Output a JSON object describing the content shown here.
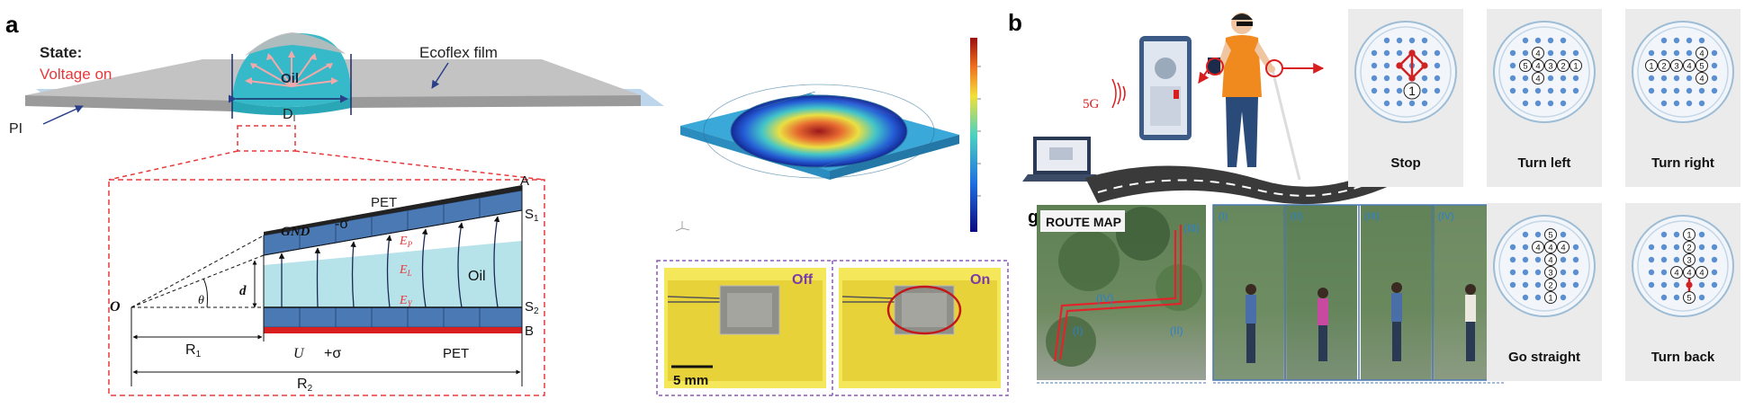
{
  "panel_a": {
    "letter": "a",
    "state_label": "State:",
    "voltage_label": "Voltage on",
    "oil_label": "Oil",
    "ecoflex_label": "Ecoflex film",
    "di_label": "D",
    "di_sub": "I",
    "pi_label": "PI",
    "pet_top": "PET",
    "pet_bottom": "PET",
    "gnd_label": "GND",
    "minus_sigma": "-σ",
    "plus_sigma": "+σ",
    "u_label": "U",
    "a_label": "A",
    "b_label": "B",
    "s1_label": "S",
    "s1_sub": "1",
    "s2_label": "S",
    "s2_sub": "2",
    "ep_label": "E",
    "ep_sub": "P",
    "el_label": "E",
    "el_sub": "L",
    "ey_label": "E",
    "ey_sub": "Y",
    "inner_oil": "Oil",
    "o_label": "O",
    "theta_label": "θ",
    "d_label": "d",
    "r1_label": "R",
    "r1_sub": "1",
    "r2_label": "R",
    "r2_sub": "2"
  },
  "photos": {
    "off_label": "Off",
    "on_label": "On",
    "scale_label": "5 mm"
  },
  "panel_b": {
    "letter": "b",
    "fiveg_label": "5G",
    "route_letter": "g",
    "route_title": "ROUTE MAP",
    "route_markers": [
      "(I)",
      "(II)",
      "(III)",
      "(IV)"
    ],
    "photo_markers": [
      "(I)",
      "(II)",
      "(III)",
      "(IV)"
    ],
    "patterns": [
      {
        "name": "Stop",
        "digits": [
          "1"
        ]
      },
      {
        "name": "Turn left",
        "digits": [
          "4",
          "5",
          "4",
          "3",
          "2",
          "1",
          "4"
        ]
      },
      {
        "name": "Turn right",
        "digits": [
          "4",
          "1",
          "2",
          "3",
          "4",
          "5",
          "4"
        ]
      },
      {
        "name": "Go straight",
        "digits": [
          "5",
          "4",
          "4",
          "4",
          "4",
          "3",
          "2",
          "1"
        ]
      },
      {
        "name": "Turn back",
        "digits": [
          "1",
          "2",
          "3",
          "4",
          "4",
          "4",
          "5"
        ]
      }
    ]
  },
  "colors": {
    "oil": "#36b9c8",
    "red_dashed": "#e8383a",
    "pet_blue": "#4a79b4",
    "electrode_red": "#d81e1e",
    "photo_frame": "#8a58b8",
    "pattern_bg": "#ebebeb",
    "dot_blue": "#5b8fd0",
    "pattern_red": "#cf2222"
  }
}
